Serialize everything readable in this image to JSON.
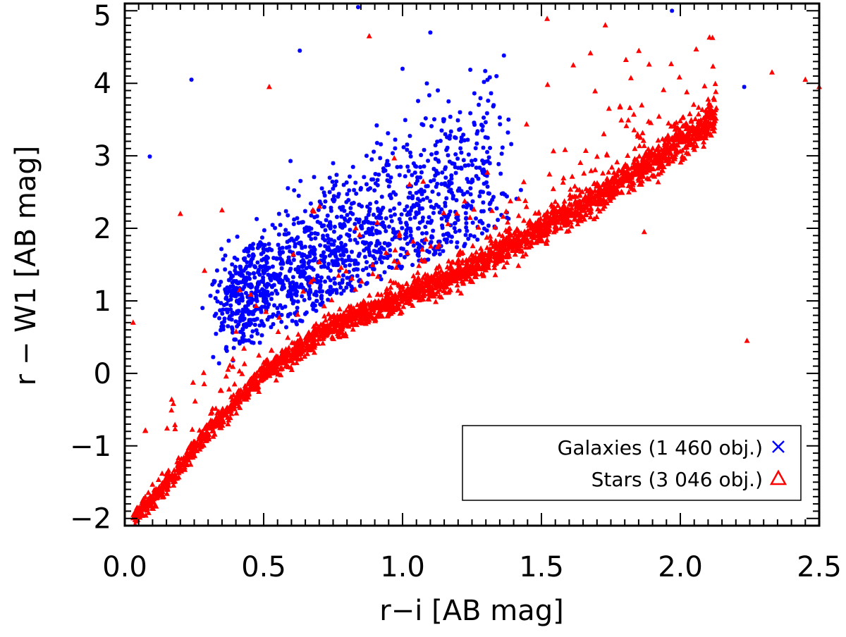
{
  "chart_data": {
    "type": "scatter",
    "title": "",
    "xlabel": "r−i [AB mag]",
    "ylabel": "r − W1 [AB mag]",
    "xlim": [
      0.0,
      2.5
    ],
    "ylim": [
      -2.1,
      5.1
    ],
    "xticks": [
      0.0,
      0.5,
      1.0,
      1.5,
      2.0,
      2.5
    ],
    "xtick_labels": [
      "0.0",
      "0.5",
      "1.0",
      "1.5",
      "2.0",
      "2.5"
    ],
    "yticks": [
      -2,
      -1,
      0,
      1,
      2,
      3,
      4,
      5
    ],
    "ytick_labels": [
      "−2",
      "−1",
      "0",
      "1",
      "2",
      "3",
      "4",
      "5"
    ],
    "grid": false,
    "legend_position": "bottom-right",
    "series": [
      {
        "name": "Galaxies (1 460 obj.)",
        "color": "#0000ff",
        "marker": "x",
        "count": 1460,
        "distribution": {
          "core_x_range": [
            0.38,
            1.35
          ],
          "core_y_at_x_min": [
            0.4,
            1.6
          ],
          "core_y_at_x_max": [
            1.8,
            4.0
          ],
          "outliers": [
            [
              0.24,
              4.05
            ],
            [
              0.09,
              2.99
            ],
            [
              0.63,
              4.45
            ],
            [
              0.84,
              5.05
            ],
            [
              1.1,
              4.7
            ],
            [
              1.97,
              5.0
            ],
            [
              2.23,
              3.95
            ],
            [
              1.0,
              4.2
            ]
          ]
        }
      },
      {
        "name": "Stars (3 046 obj.)",
        "color": "#ff0000",
        "marker": "triangle",
        "count": 3046,
        "distribution": {
          "locus": [
            [
              0.03,
              -2.0
            ],
            [
              0.15,
              -1.55
            ],
            [
              0.3,
              -0.8
            ],
            [
              0.5,
              0.0
            ],
            [
              0.75,
              0.65
            ],
            [
              1.0,
              1.05
            ],
            [
              1.25,
              1.45
            ],
            [
              1.5,
              2.0
            ],
            [
              1.75,
              2.55
            ],
            [
              2.0,
              3.2
            ],
            [
              2.15,
              3.55
            ]
          ],
          "outliers": [
            [
              0.88,
              4.65
            ],
            [
              1.73,
              4.8
            ],
            [
              2.33,
              4.15
            ],
            [
              2.45,
              4.05
            ],
            [
              2.5,
              3.95
            ],
            [
              2.24,
              0.45
            ],
            [
              1.87,
              1.95
            ],
            [
              0.52,
              3.95
            ],
            [
              0.35,
              2.25
            ],
            [
              0.2,
              2.2
            ],
            [
              0.03,
              0.7
            ]
          ]
        }
      }
    ]
  }
}
